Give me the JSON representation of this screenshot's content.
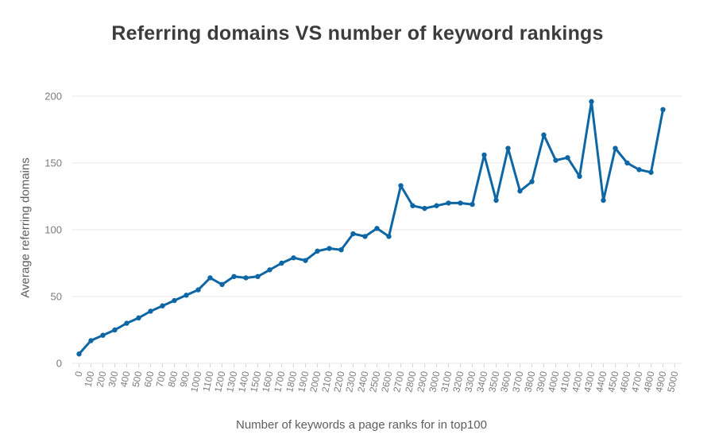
{
  "title": "Referring domains VS number of keyword rankings",
  "chart_data": {
    "type": "line",
    "title": "Referring domains VS number of keyword rankings",
    "xlabel": "Number of keywords a page ranks for in top100",
    "ylabel": "Average referring domains",
    "x": [
      0,
      100,
      200,
      300,
      400,
      500,
      600,
      700,
      800,
      900,
      1000,
      1100,
      1200,
      1300,
      1400,
      1500,
      1600,
      1700,
      1800,
      1900,
      2000,
      2100,
      2200,
      2300,
      2400,
      2500,
      2600,
      2700,
      2800,
      2900,
      3000,
      3100,
      3200,
      3300,
      3400,
      3500,
      3600,
      3700,
      3800,
      3900,
      4000,
      4100,
      4200,
      4300,
      4400,
      4500,
      4600,
      4700,
      4800,
      4900
    ],
    "values": [
      7,
      17,
      21,
      25,
      30,
      34,
      39,
      43,
      47,
      51,
      55,
      64,
      59,
      65,
      64,
      65,
      70,
      75,
      79,
      77,
      84,
      86,
      85,
      97,
      95,
      101,
      95,
      133,
      118,
      116,
      118,
      120,
      120,
      119,
      156,
      122,
      161,
      129,
      136,
      171,
      152,
      154,
      140,
      196,
      122,
      161,
      150,
      145,
      143,
      190
    ],
    "x_ticks": [
      0,
      100,
      200,
      300,
      400,
      500,
      600,
      700,
      800,
      900,
      1000,
      1100,
      1200,
      1300,
      1400,
      1500,
      1600,
      1700,
      1800,
      1900,
      2000,
      2100,
      2200,
      2300,
      2400,
      2500,
      2600,
      2700,
      2800,
      2900,
      3000,
      3100,
      3200,
      3300,
      3400,
      3500,
      3600,
      3700,
      3800,
      3900,
      4000,
      4100,
      4200,
      4300,
      4400,
      4500,
      4600,
      4700,
      4800,
      4900,
      5000
    ],
    "y_ticks": [
      0,
      50,
      100,
      150,
      200
    ],
    "xlim": [
      0,
      5000
    ],
    "ylim": [
      0,
      200
    ],
    "grid": "horizontal",
    "legend": "none",
    "line_color": "#0e67a4",
    "marker": "circle",
    "grid_color": "#e8e8e8",
    "tick_color": "#d6d6d6",
    "tick_label_color": "#7b7b7b",
    "background": "#ffffff"
  }
}
